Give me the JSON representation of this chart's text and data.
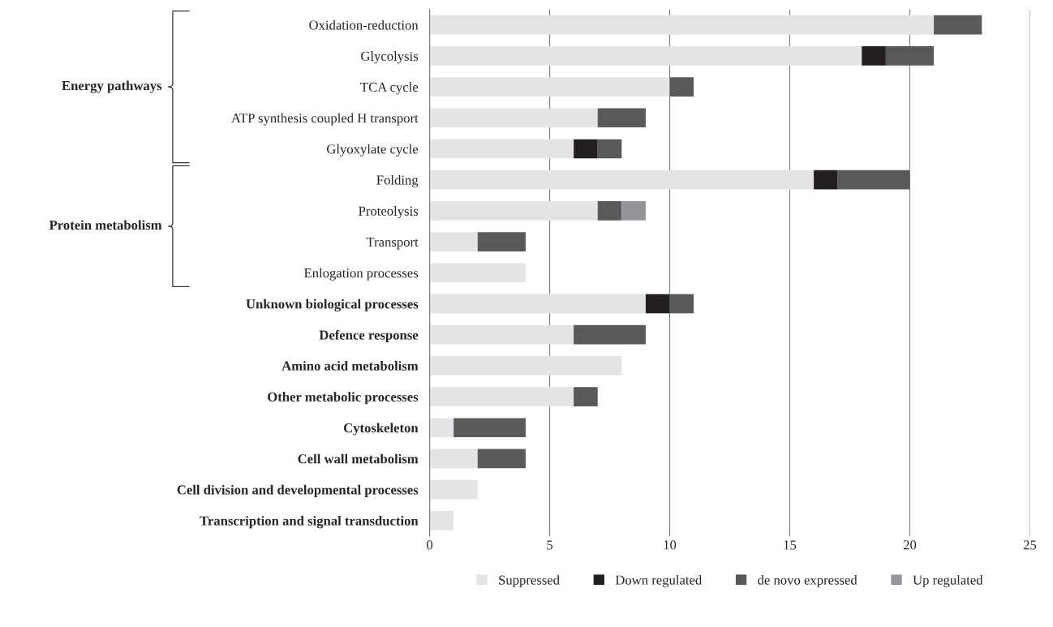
{
  "chart_data": {
    "type": "bar",
    "orientation": "horizontal",
    "stacked": true,
    "categories": [
      "Oxidation-reduction",
      "Glycolysis",
      "TCA cycle",
      "ATP synthesis coupled H transport",
      "Glyoxylate cycle",
      "Folding",
      "Proteolysis",
      "Transport",
      "Enlogation processes",
      "Unknown biological processes",
      "Defence response",
      "Amino acid metabolism",
      "Other metabolic processes",
      "Cytoskeleton",
      "Cell wall metabolism",
      "Cell division and developmental processes",
      "Transcription and signal transduction"
    ],
    "series": [
      {
        "name": "Suppressed",
        "color": "#e4e4e6",
        "values": [
          21,
          18,
          10,
          7,
          6,
          16,
          7,
          2,
          4,
          9,
          6,
          8,
          6,
          1,
          2,
          2,
          1
        ]
      },
      {
        "name": "Down regulated",
        "color": "#231f20",
        "values": [
          0,
          1,
          0,
          0,
          1,
          1,
          0,
          0,
          0,
          1,
          0,
          0,
          0,
          0,
          0,
          0,
          0
        ]
      },
      {
        "name": "de novo expressed",
        "color": "#58595b",
        "values": [
          2,
          2,
          1,
          2,
          1,
          3,
          1,
          2,
          0,
          1,
          3,
          0,
          1,
          3,
          2,
          0,
          0
        ]
      },
      {
        "name": "Up regulated",
        "color": "#939598",
        "values": [
          0,
          0,
          0,
          0,
          0,
          0,
          1,
          0,
          0,
          0,
          0,
          0,
          0,
          0,
          0,
          0,
          0
        ]
      }
    ],
    "annotations": [
      "Energy pathways",
      "Protein metabolism"
    ],
    "xlim": [
      0,
      25
    ],
    "xticks": [
      0,
      5,
      10,
      15,
      20,
      25
    ],
    "grid": "x",
    "legend": "bottom"
  }
}
